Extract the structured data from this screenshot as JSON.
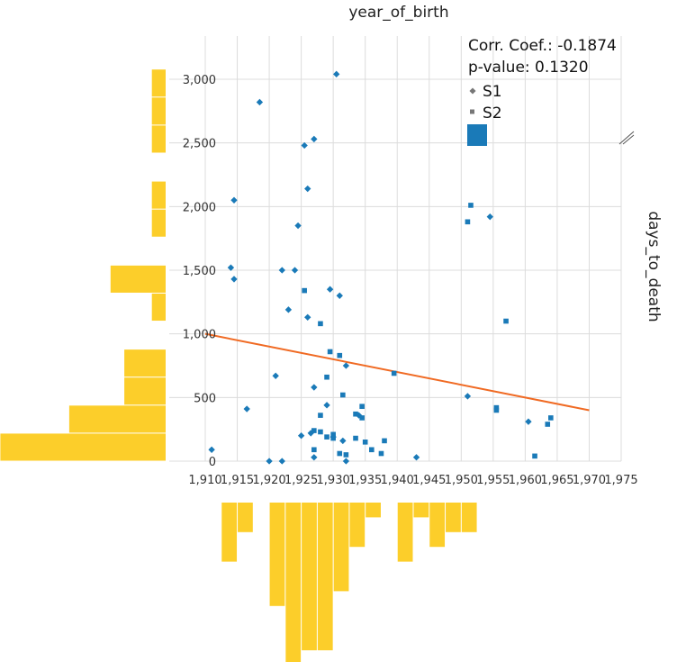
{
  "chart_data": {
    "type": "scatter",
    "xlabel": "year_of_birth",
    "ylabel": "days_to_death",
    "xlim": [
      1910,
      1975
    ],
    "ylim": [
      0,
      3000
    ],
    "x_ticks": [
      "1,910",
      "1,915",
      "1,920",
      "1,925",
      "1,930",
      "1,935",
      "1,940",
      "1,945",
      "1,950",
      "1,955",
      "1,960",
      "1,965",
      "1,970",
      "1,975"
    ],
    "y_ticks": [
      "0",
      "500",
      "1,000",
      "1,500",
      "2,000",
      "2,500",
      "3,000"
    ],
    "grid": true,
    "stats": {
      "corr": "Corr. Coef.: -0.1874",
      "pvalue": "p-value: 0.1320"
    },
    "legend_position": "top-right",
    "colors": {
      "points": "#1a7ab8",
      "fit": "#f06a23",
      "hist": "#fcce2a"
    },
    "series": [
      {
        "name": "S1",
        "marker": "diamond",
        "points": [
          [
            1911,
            90
          ],
          [
            1914,
            1520
          ],
          [
            1914.5,
            2050
          ],
          [
            1914.5,
            1430
          ],
          [
            1916.5,
            410
          ],
          [
            1918.5,
            2820
          ],
          [
            1920,
            0
          ],
          [
            1921,
            670
          ],
          [
            1922,
            0
          ],
          [
            1922,
            1500
          ],
          [
            1923,
            1190
          ],
          [
            1924,
            1500
          ],
          [
            1924.5,
            1850
          ],
          [
            1925,
            200
          ],
          [
            1925.5,
            2480
          ],
          [
            1926,
            2140
          ],
          [
            1926,
            1130
          ],
          [
            1926.5,
            220
          ],
          [
            1927,
            2530
          ],
          [
            1927,
            580
          ],
          [
            1927,
            30
          ],
          [
            1929,
            440
          ],
          [
            1929.5,
            1350
          ],
          [
            1930,
            190
          ],
          [
            1930.5,
            3040
          ],
          [
            1931,
            1300
          ],
          [
            1931.5,
            160
          ],
          [
            1932,
            750
          ],
          [
            1932,
            0
          ],
          [
            1934,
            360
          ],
          [
            1943,
            30
          ],
          [
            1951,
            510
          ],
          [
            1954.5,
            1920
          ],
          [
            1960.5,
            310
          ]
        ]
      },
      {
        "name": "S2",
        "marker": "square",
        "points": [
          [
            1925.5,
            1340
          ],
          [
            1927,
            240
          ],
          [
            1927,
            90
          ],
          [
            1928,
            230
          ],
          [
            1928,
            360
          ],
          [
            1928,
            1080
          ],
          [
            1929,
            660
          ],
          [
            1929,
            190
          ],
          [
            1929.5,
            860
          ],
          [
            1930,
            210
          ],
          [
            1930,
            180
          ],
          [
            1931,
            830
          ],
          [
            1931,
            60
          ],
          [
            1931.5,
            520
          ],
          [
            1932,
            50
          ],
          [
            1933.5,
            370
          ],
          [
            1933.5,
            180
          ],
          [
            1934.5,
            340
          ],
          [
            1934.5,
            430
          ],
          [
            1935,
            150
          ],
          [
            1936,
            90
          ],
          [
            1937.5,
            60
          ],
          [
            1938,
            160
          ],
          [
            1939.5,
            690
          ],
          [
            1951,
            1880
          ],
          [
            1951.5,
            2010
          ],
          [
            1955.5,
            420
          ],
          [
            1955.5,
            400
          ],
          [
            1957,
            1100
          ],
          [
            1961.5,
            40
          ],
          [
            1963.5,
            290
          ],
          [
            1964,
            340
          ]
        ]
      }
    ],
    "fit_line": {
      "x": [
        1910,
        1970
      ],
      "y": [
        1000,
        400
      ]
    },
    "marginal_x": {
      "bin_edges": [
        1912.5,
        1915,
        1917.5,
        1920,
        1922.5,
        1925,
        1927.5,
        1930,
        1932.5,
        1935,
        1937.5,
        1940,
        1942.5,
        1945,
        1947.5,
        1950,
        1952.5,
        1955,
        1957.5,
        1960
      ],
      "counts": [
        4,
        2,
        0,
        7,
        11,
        10,
        10,
        6,
        3,
        1,
        0,
        4,
        1,
        3,
        2,
        2,
        0,
        0,
        0
      ]
    },
    "marginal_y": {
      "bin_edges": [
        0,
        220,
        440,
        660,
        880,
        1100,
        1320,
        1540,
        1760,
        1980,
        2200,
        2420,
        2640,
        2860,
        3080
      ],
      "counts": [
        12,
        7,
        3,
        3,
        0,
        1,
        4,
        0,
        1,
        1,
        0,
        1,
        1,
        1
      ]
    }
  }
}
